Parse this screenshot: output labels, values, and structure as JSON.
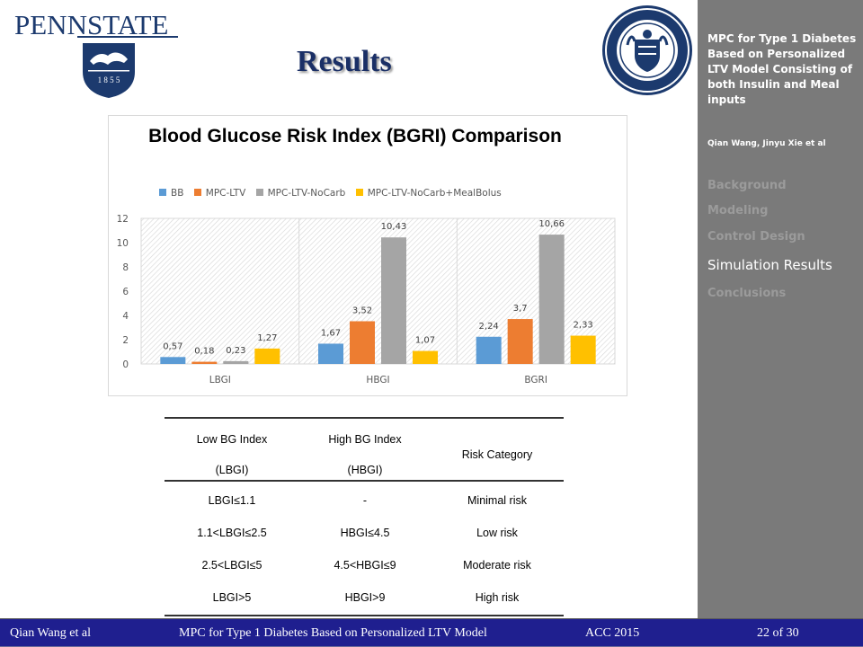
{
  "header": {
    "logo_text": "PENNSTATE",
    "logo_year": "1 8 5 5",
    "title": "Results"
  },
  "sidebar": {
    "title": "MPC for Type 1 Diabetes Based on Personalized LTV Model Consisting of both Insulin and Meal inputs",
    "authors": "Qian Wang, Jinyu Xie et al",
    "nav": [
      {
        "label": "Background",
        "active": false
      },
      {
        "label": "Modeling",
        "active": false
      },
      {
        "label": "Control Design",
        "active": false
      },
      {
        "label": "Simulation Results",
        "active": true
      },
      {
        "label": "Conclusions",
        "active": false
      }
    ]
  },
  "chart_data": {
    "type": "bar",
    "title": "Blood Glucose Risk Index (BGRI) Comparison",
    "categories": [
      "LBGI",
      "HBGI",
      "BGRI"
    ],
    "series": [
      {
        "name": "BB",
        "values": [
          0.57,
          1.67,
          2.24
        ],
        "labels": [
          "0,57",
          "1,67",
          "2,24"
        ],
        "color": "#5b9bd5"
      },
      {
        "name": "MPC-LTV",
        "values": [
          0.18,
          3.52,
          3.7
        ],
        "labels": [
          "0,18",
          "3,52",
          "3,7"
        ],
        "color": "#ed7d31"
      },
      {
        "name": "MPC-LTV-NoCarb",
        "values": [
          0.23,
          10.43,
          10.66
        ],
        "labels": [
          "0,23",
          "10,43",
          "10,66"
        ],
        "color": "#a5a5a5"
      },
      {
        "name": "MPC-LTV-NoCarb+MealBolus",
        "values": [
          1.27,
          1.07,
          2.33
        ],
        "labels": [
          "1,27",
          "1,07",
          "2,33"
        ],
        "color": "#ffc000"
      }
    ],
    "ylim": [
      0,
      12
    ],
    "yticks": [
      "0",
      "2",
      "4",
      "6",
      "8",
      "10",
      "12"
    ],
    "legend": "top",
    "grid": false
  },
  "table": {
    "headers": {
      "lbgi_line1": "Low BG Index",
      "lbgi_line2": "(LBGI)",
      "hbgi_line1": "High BG Index",
      "hbgi_line2": "(HBGI)",
      "risk": "Risk Category"
    },
    "rows": [
      {
        "lbgi": "LBGI≤1.1",
        "hbgi": "-",
        "risk": "Minimal risk"
      },
      {
        "lbgi": "1.1<LBGI≤2.5",
        "hbgi": "HBGI≤4.5",
        "risk": "Low risk"
      },
      {
        "lbgi": "2.5<LBGI≤5",
        "hbgi": "4.5<HBGI≤9",
        "risk": "Moderate risk"
      },
      {
        "lbgi": "LBGI>5",
        "hbgi": "HBGI>9",
        "risk": "High risk"
      }
    ]
  },
  "footer": {
    "author": "Qian Wang et al",
    "title": "MPC for Type 1 Diabetes Based on Personalized LTV Model",
    "conference": "ACC 2015",
    "page": "22 of 30"
  },
  "colors": {
    "sidebar_bg": "#7a7a7a",
    "footer_bg": "#1f1f8f",
    "title_color": "#1a2f66",
    "logo_color": "#1c3a6e"
  }
}
